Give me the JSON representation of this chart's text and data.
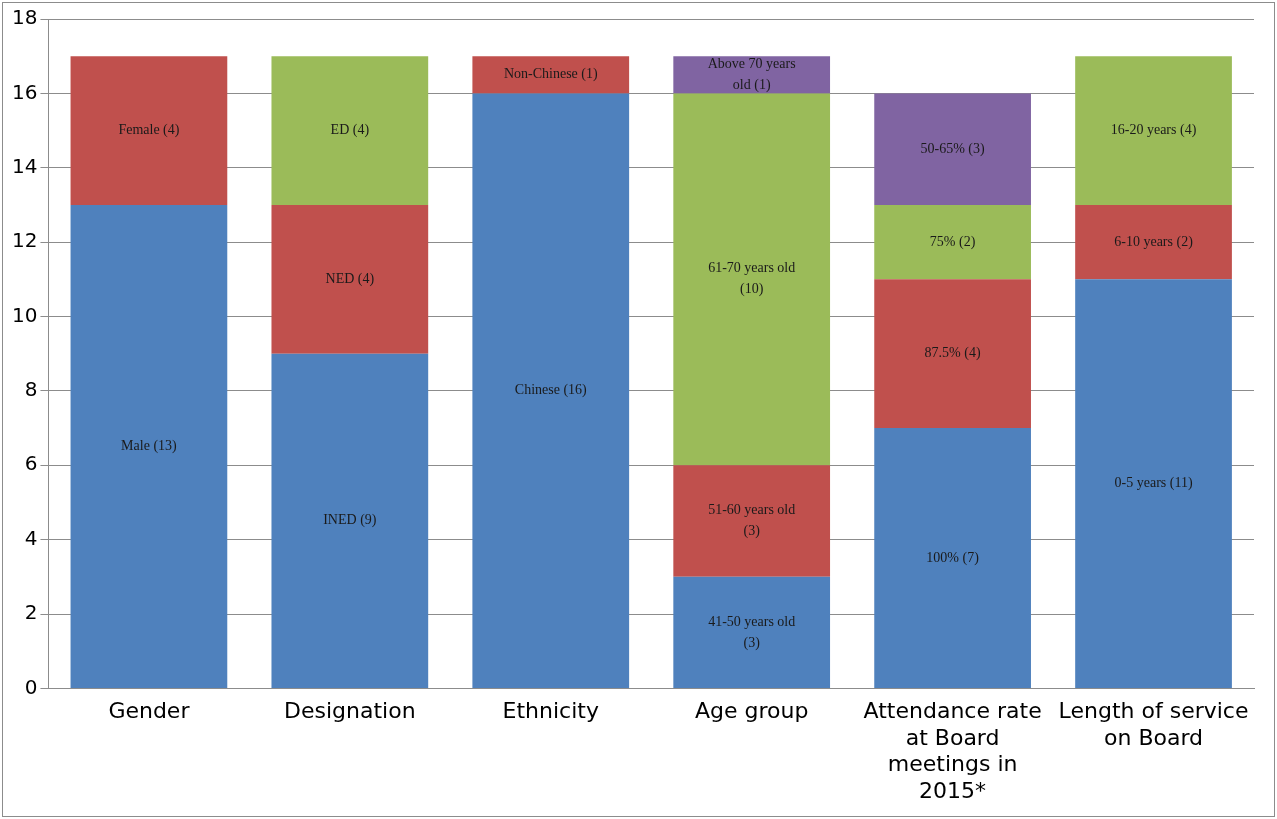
{
  "chart_data": {
    "type": "bar",
    "stacked": true,
    "categories": [
      "Gender",
      "Designation",
      "Ethnicity",
      "Age group",
      "Attendance rate at Board meetings in 2015*",
      "Length of service on Board"
    ],
    "series": [
      {
        "color": "#4f81bd",
        "values": [
          13,
          9,
          16,
          3,
          7,
          11
        ],
        "value_labels": [
          "Male (13)",
          "INED (9)",
          "Chinese (16)",
          "41-50 years old (3)",
          "100% (7)",
          "0-5 years (11)"
        ]
      },
      {
        "color": "#c0504d",
        "values": [
          4,
          4,
          1,
          3,
          4,
          2
        ],
        "value_labels": [
          "Female (4)",
          "NED (4)",
          "Non-Chinese (1)",
          "51-60 years old (3)",
          "87.5% (4)",
          "6-10 years (2)"
        ]
      },
      {
        "color": "#9bbb59",
        "values": [
          null,
          4,
          null,
          10,
          2,
          4
        ],
        "value_labels": [
          null,
          "ED (4)",
          null,
          "61-70 years old (10)",
          "75% (2)",
          "16-20 years (4)"
        ]
      },
      {
        "color": "#8064a2",
        "values": [
          null,
          null,
          null,
          1,
          3,
          null
        ],
        "value_labels": [
          null,
          null,
          null,
          "Above 70 years old (1)",
          "50-65% (3)",
          null
        ]
      }
    ],
    "ylim": [
      0,
      18
    ],
    "yticks": [
      0,
      2,
      4,
      6,
      8,
      10,
      12,
      14,
      16,
      18
    ],
    "grid": "y",
    "legend": false
  }
}
